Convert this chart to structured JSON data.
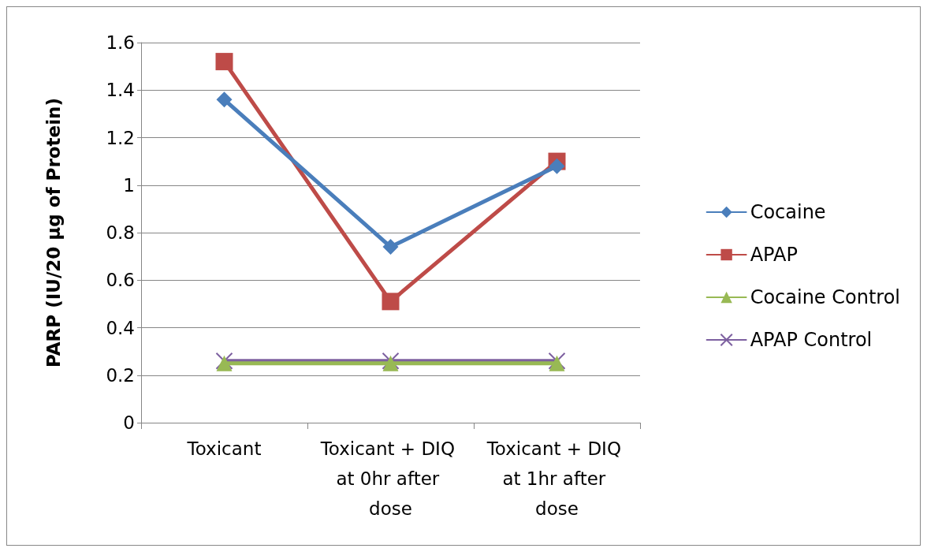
{
  "chart_data": {
    "type": "line",
    "ylabel": "PARP (IU/20 µg of Protein)",
    "categories": [
      "Toxicant",
      "Toxicant + DIQ at 0hr after dose",
      "Toxicant + DIQ at 1hr after dose"
    ],
    "series": [
      {
        "name": "Cocaine",
        "color": "#4a7ebb",
        "marker": "diamond",
        "values": [
          1.36,
          0.74,
          1.08
        ]
      },
      {
        "name": "APAP",
        "color": "#be4b48",
        "marker": "square",
        "values": [
          1.52,
          0.51,
          1.1
        ]
      },
      {
        "name": "Cocaine Control",
        "color": "#98b954",
        "marker": "triangle",
        "values": [
          0.25,
          0.25,
          0.25
        ]
      },
      {
        "name": "APAP Control",
        "color": "#7d60a0",
        "marker": "cross",
        "values": [
          0.26,
          0.26,
          0.26
        ]
      }
    ],
    "ylim": [
      0,
      1.6
    ],
    "yticks": [
      0,
      0.2,
      0.4,
      0.6,
      0.8,
      1,
      1.2,
      1.4,
      1.6
    ],
    "grid": "y",
    "legend": "right",
    "line_style": "solid"
  }
}
